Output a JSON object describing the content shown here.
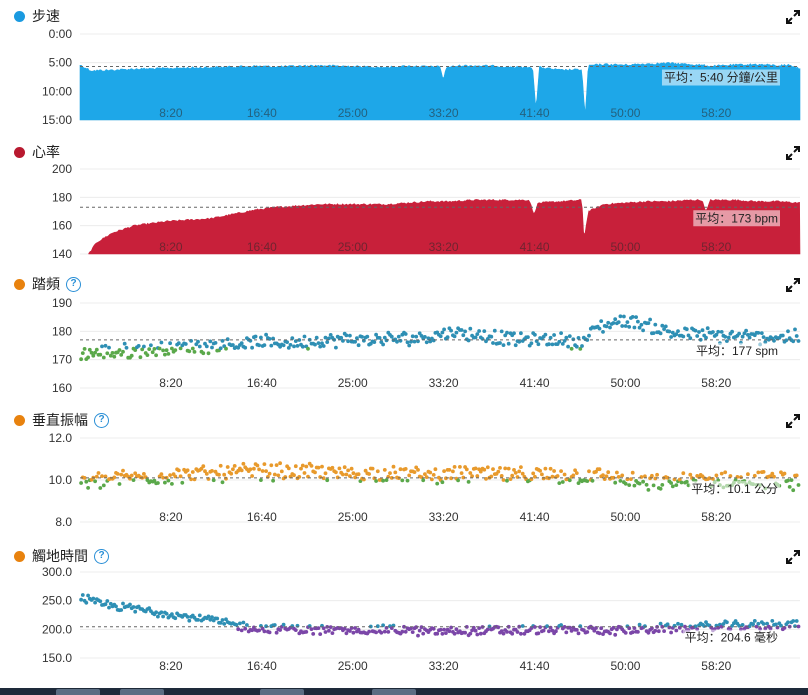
{
  "chart_data": [
    {
      "id": "pace",
      "type": "area",
      "title": "步速",
      "color": "#1ea7e8",
      "dot_color": "#1a9ae0",
      "inverted": true,
      "y_ticks": [
        "0:00",
        "5:00",
        "10:00",
        "15:00"
      ],
      "ylim": [
        0,
        15
      ],
      "x_ticks": [
        "8:20",
        "16:40",
        "25:00",
        "33:20",
        "41:40",
        "50:00",
        "58:20"
      ],
      "x_tick_values": [
        8.33,
        16.67,
        25,
        33.33,
        41.67,
        50,
        58.33
      ],
      "xlim": [
        0,
        66
      ],
      "avg_value": 5.67,
      "avg_label": "平均：5:40 分鐘/公里",
      "series": [
        {
          "name": "pace",
          "x": [
            0,
            1,
            3,
            5,
            8,
            10,
            13,
            16,
            18,
            20,
            22,
            24,
            26,
            28,
            30,
            32,
            33,
            33.3,
            33.6,
            35,
            38,
            40,
            41.5,
            41.8,
            42.1,
            44,
            46,
            46.3,
            46.6,
            48,
            50,
            52,
            54,
            56,
            58,
            60,
            62,
            64,
            65,
            66
          ],
          "y": [
            5.4,
            6.4,
            6.3,
            6.1,
            6.0,
            5.9,
            5.8,
            5.6,
            5.7,
            5.6,
            5.5,
            5.6,
            5.7,
            5.8,
            5.6,
            5.7,
            5.7,
            8.0,
            5.8,
            5.5,
            5.6,
            5.8,
            5.8,
            13.5,
            5.8,
            6.3,
            6.2,
            14.5,
            5.5,
            5.3,
            5.4,
            5.2,
            5.1,
            5.3,
            5.6,
            5.4,
            5.3,
            5.5,
            5.4,
            6.0
          ]
        }
      ]
    },
    {
      "id": "hr",
      "type": "area",
      "title": "心率",
      "color": "#c8203a",
      "dot_color": "#b8192f",
      "inverted": false,
      "y_ticks": [
        "200",
        "180",
        "160",
        "140"
      ],
      "ylim": [
        140,
        200
      ],
      "x_ticks": [
        "8:20",
        "16:40",
        "25:00",
        "33:20",
        "41:40",
        "50:00",
        "58:20"
      ],
      "x_tick_values": [
        8.33,
        16.67,
        25,
        33.33,
        41.67,
        50,
        58.33
      ],
      "xlim": [
        0,
        66
      ],
      "avg_value": 173,
      "avg_label": "平均：173 bpm",
      "series": [
        {
          "name": "heart_rate",
          "x": [
            0.8,
            1.5,
            3,
            5,
            8,
            10,
            12,
            14,
            16,
            18,
            20,
            22,
            24,
            26,
            28,
            30,
            32,
            34,
            36,
            38,
            40,
            41.2,
            41.6,
            42,
            44,
            46,
            46.2,
            46.6,
            48,
            50,
            52,
            54,
            56,
            57,
            57.4,
            57.8,
            60,
            62,
            64,
            66
          ],
          "y": [
            140,
            148,
            155,
            160,
            163,
            164,
            165,
            168,
            171,
            173,
            174,
            175,
            175,
            175,
            175,
            176,
            177,
            177,
            178,
            178,
            178,
            178,
            168,
            176,
            177,
            178,
            150,
            170,
            175,
            176,
            177,
            177,
            178,
            178,
            170,
            178,
            178,
            177,
            177,
            176
          ]
        }
      ]
    },
    {
      "id": "cadence",
      "type": "scatter",
      "title": "踏頻",
      "help": "?",
      "color": "#2e8fb4",
      "color_low": "#5aa84a",
      "dot_color": "#e8820e",
      "inverted": false,
      "y_ticks": [
        "190",
        "180",
        "170",
        "160"
      ],
      "ylim": [
        160,
        190
      ],
      "x_ticks": [
        "8:20",
        "16:40",
        "25:00",
        "33:20",
        "41:40",
        "50:00",
        "58:20"
      ],
      "x_tick_values": [
        8.33,
        16.67,
        25,
        33.33,
        41.67,
        50,
        58.33
      ],
      "xlim": [
        0,
        66
      ],
      "avg_value": 177,
      "avg_label": "平均：177 spm",
      "low_threshold": 174,
      "series": [
        {
          "name": "cadence_trend",
          "x": [
            0,
            4,
            8,
            12,
            16,
            20,
            24,
            28,
            32,
            34,
            36,
            40,
            44,
            46,
            47,
            48,
            50,
            52,
            54,
            56,
            60,
            64,
            66
          ],
          "y": [
            172,
            173,
            174,
            175,
            176,
            176,
            177,
            177,
            178,
            180,
            179,
            177,
            177,
            176,
            180,
            182,
            184,
            182,
            180,
            179,
            178,
            178,
            178
          ]
        }
      ],
      "spread": 2.2
    },
    {
      "id": "vertical_oscillation",
      "type": "scatter",
      "title": "垂直振幅",
      "help": "?",
      "color": "#e89a2c",
      "color_low": "#5aa84a",
      "dot_color": "#e8820e",
      "inverted": false,
      "y_ticks": [
        "12.0",
        "10.0",
        "8.0"
      ],
      "ylim": [
        8,
        12
      ],
      "x_ticks": [
        "8:20",
        "16:40",
        "25:00",
        "33:20",
        "41:40",
        "50:00",
        "58:20"
      ],
      "x_tick_values": [
        8.33,
        16.67,
        25,
        33.33,
        41.67,
        50,
        58.33
      ],
      "xlim": [
        0,
        66
      ],
      "avg_value": 10.1,
      "avg_label": "平均：10.1 公分",
      "low_threshold": 10.0,
      "series": [
        {
          "name": "vo_trend",
          "x": [
            0,
            4,
            8,
            12,
            16,
            20,
            24,
            28,
            32,
            36,
            40,
            44,
            48,
            52,
            56,
            60,
            64,
            66
          ],
          "y": [
            9.9,
            10.1,
            10.2,
            10.3,
            10.4,
            10.4,
            10.3,
            10.3,
            10.2,
            10.3,
            10.2,
            10.2,
            10.2,
            9.8,
            10.0,
            10.0,
            10.0,
            9.9
          ]
        }
      ],
      "spread": 0.35
    },
    {
      "id": "ground_contact_time",
      "type": "scatter",
      "title": "觸地時間",
      "help": "?",
      "color": "#2e8fb4",
      "color_low": "#7b46a8",
      "dot_color": "#e8820e",
      "inverted": false,
      "y_ticks": [
        "300.0",
        "250.0",
        "200.0",
        "150.0"
      ],
      "ylim": [
        150,
        300
      ],
      "x_ticks": [
        "8:20",
        "16:40",
        "25:00",
        "33:20",
        "41:40",
        "50:00",
        "58:20"
      ],
      "x_tick_values": [
        8.33,
        16.67,
        25,
        33.33,
        41.67,
        50,
        58.33
      ],
      "xlim": [
        0,
        66
      ],
      "avg_value": 204.6,
      "avg_label": "平均：204.6 毫秒",
      "low_threshold": 205,
      "series": [
        {
          "name": "gct_trend",
          "x": [
            0,
            1,
            3,
            5,
            8,
            10,
            12,
            14,
            16,
            20,
            24,
            28,
            32,
            36,
            40,
            44,
            48,
            52,
            56,
            60,
            64,
            66
          ],
          "y": [
            258,
            248,
            240,
            236,
            228,
            222,
            216,
            208,
            202,
            200,
            198,
            200,
            196,
            198,
            198,
            200,
            198,
            200,
            204,
            206,
            208,
            210
          ]
        }
      ],
      "spread": 7
    }
  ]
}
